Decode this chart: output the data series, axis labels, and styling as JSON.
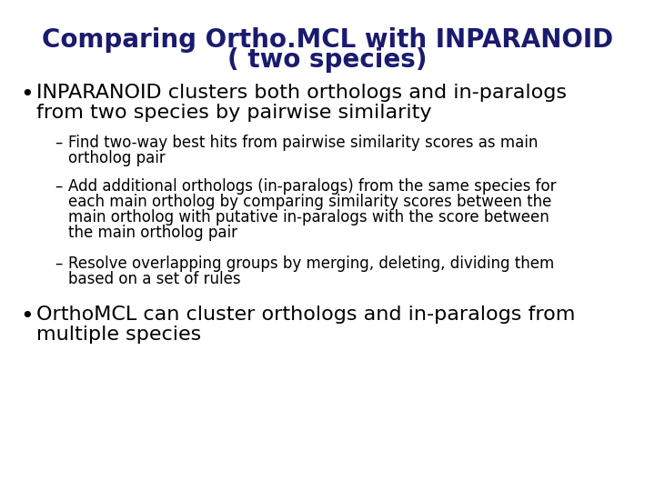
{
  "title_line1": "Comparing Ortho.MCL with INPARANOID",
  "title_line2": "( two species)",
  "title_color": "#1a1a6e",
  "body_color": "#000000",
  "background_color": "#ffffff",
  "bullet1_line1": "INPARANOID clusters both orthologs and in-paralogs",
  "bullet1_line2": "from two species by pairwise similarity",
  "sub1_line1": "Find two-way best hits from pairwise similarity scores as main",
  "sub1_line2": "ortholog pair",
  "sub2_line1": "Add additional orthologs (in-paralogs) from the same species for",
  "sub2_line2": "each main ortholog by comparing similarity scores between the",
  "sub2_line3": "main ortholog with putative in-paralogs with the score between",
  "sub2_line4": "the main ortholog pair",
  "sub3_line1": "Resolve overlapping groups by merging, deleting, dividing them",
  "sub3_line2": "based on a set of rules",
  "bullet2_line1": "OrthoMCL can cluster orthologs and in-paralogs from",
  "bullet2_line2": "multiple species",
  "title_fontsize": 20,
  "bullet_fontsize": 16,
  "sub_fontsize": 12,
  "figsize": [
    7.2,
    5.4
  ],
  "dpi": 100
}
